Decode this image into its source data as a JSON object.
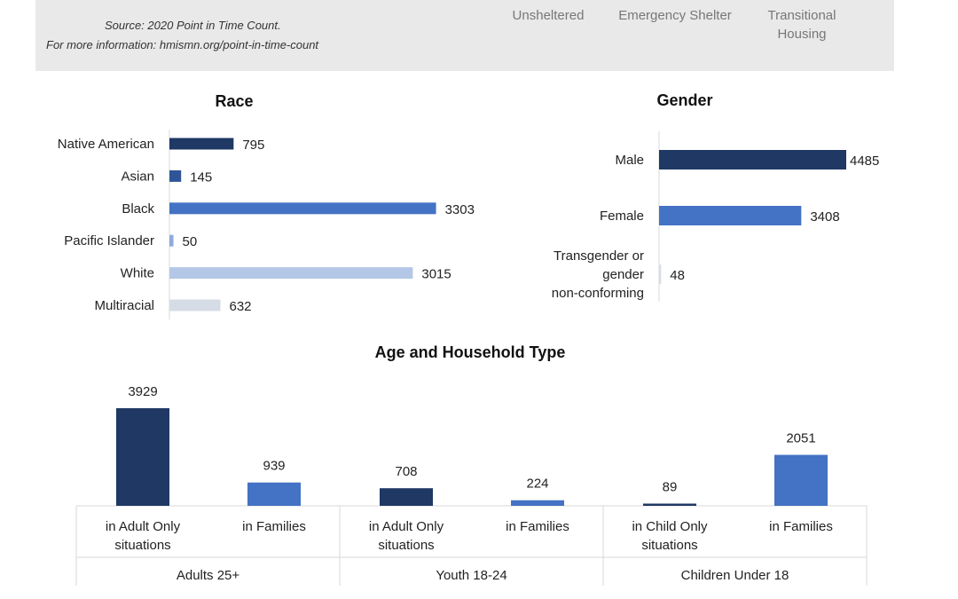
{
  "header": {
    "source": "Source: 2020 Point in Time Count.",
    "more_info": "For more information: hmismn.org/point-in-time-count",
    "legend": [
      {
        "label": "Unsheltered"
      },
      {
        "label": "Emergency Shelter"
      },
      {
        "label": "Transitional Housing"
      }
    ]
  },
  "chart_data": [
    {
      "type": "bar",
      "orientation": "horizontal",
      "title": "Race",
      "categories": [
        "Native American",
        "Asian",
        "Black",
        "Pacific Islander",
        "White",
        "Multiracial"
      ],
      "values": [
        795,
        145,
        3303,
        50,
        3015,
        632
      ],
      "colors": [
        "#1f3864",
        "#2f5597",
        "#4472c4",
        "#8faadc",
        "#b4c7e7",
        "#d6dce5"
      ],
      "xlim": [
        0,
        5000
      ]
    },
    {
      "type": "bar",
      "orientation": "horizontal",
      "title": "Gender",
      "categories": [
        "Male",
        "Female",
        "Transgender or gender non-conforming"
      ],
      "values": [
        4485,
        3408,
        48
      ],
      "colors": [
        "#1f3864",
        "#4472c4",
        "#d6dce5"
      ],
      "xlim": [
        0,
        4485
      ]
    },
    {
      "type": "bar",
      "orientation": "vertical",
      "title": "Age and Household Type",
      "groups": [
        {
          "name": "Adults 25+",
          "categories": [
            "in Adult Only situations",
            "in Families"
          ],
          "values": [
            3929,
            939
          ]
        },
        {
          "name": "Youth 18-24",
          "categories": [
            "in Adult Only situations",
            "in Families"
          ],
          "values": [
            708,
            224
          ]
        },
        {
          "name": "Children Under 18",
          "categories": [
            "in Child Only situations",
            "in Families"
          ],
          "values": [
            89,
            2051
          ]
        }
      ],
      "colors": [
        "#1f3864",
        "#4472c4"
      ],
      "ylim": [
        0,
        3929
      ]
    }
  ]
}
